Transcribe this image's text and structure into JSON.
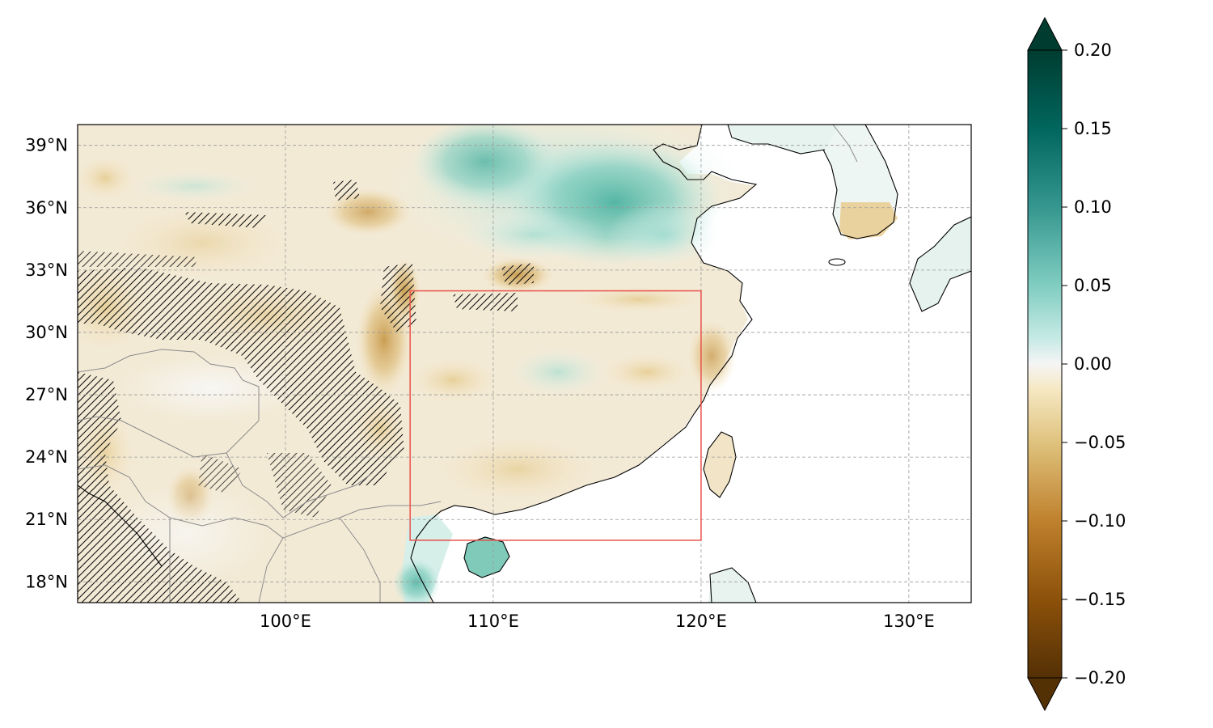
{
  "map": {
    "lon_range": [
      90,
      133
    ],
    "lat_range": [
      17,
      40
    ],
    "lon_ticks": [
      {
        "value": 100,
        "label": "100°E"
      },
      {
        "value": 110,
        "label": "110°E"
      },
      {
        "value": 120,
        "label": "120°E"
      },
      {
        "value": 130,
        "label": "130°E"
      }
    ],
    "lat_ticks": [
      {
        "value": 18,
        "label": "18°N"
      },
      {
        "value": 21,
        "label": "21°N"
      },
      {
        "value": 24,
        "label": "24°N"
      },
      {
        "value": 27,
        "label": "27°N"
      },
      {
        "value": 30,
        "label": "30°N"
      },
      {
        "value": 33,
        "label": "33°N"
      },
      {
        "value": 36,
        "label": "36°N"
      },
      {
        "value": 39,
        "label": "39°N"
      }
    ],
    "gridlines": true,
    "region_box": {
      "lon_min": 106,
      "lon_max": 120,
      "lat_min": 20,
      "lat_max": 32,
      "color": "#e8524a"
    },
    "hatched_significance": true
  },
  "colorbar": {
    "colormap": "BrBG",
    "range": [
      -0.2,
      0.2
    ],
    "extend": "both",
    "ticks": [
      {
        "value": 0.2,
        "label": "0.20"
      },
      {
        "value": 0.15,
        "label": "0.15"
      },
      {
        "value": 0.1,
        "label": "0.10"
      },
      {
        "value": 0.05,
        "label": "0.05"
      },
      {
        "value": 0.0,
        "label": "0.00"
      },
      {
        "value": -0.05,
        "label": "−0.05"
      },
      {
        "value": -0.1,
        "label": "−0.10"
      },
      {
        "value": -0.15,
        "label": "−0.15"
      },
      {
        "value": -0.2,
        "label": "−0.20"
      }
    ]
  }
}
